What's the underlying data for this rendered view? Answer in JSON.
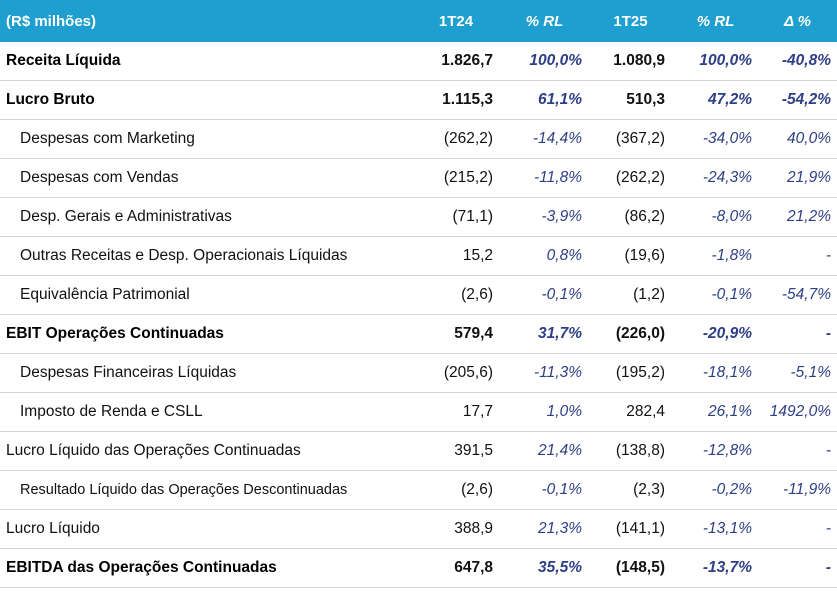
{
  "header": {
    "label": "(R$ milhões)",
    "col_1t24": "1T24",
    "col_rl_1": "% RL",
    "col_1t25": "1T25",
    "col_rl_2": "% RL",
    "col_delta": "Δ %"
  },
  "rows": [
    {
      "label": "Receita Líquida",
      "v1": "1.826,7",
      "p1": "100,0%",
      "v2": "1.080,9",
      "p2": "100,0%",
      "d": "-40,8%"
    },
    {
      "label": "Lucro Bruto",
      "v1": "1.115,3",
      "p1": "61,1%",
      "v2": "510,3",
      "p2": "47,2%",
      "d": "-54,2%"
    },
    {
      "label": "Despesas com Marketing",
      "v1": "(262,2)",
      "p1": "-14,4%",
      "v2": "(367,2)",
      "p2": "-34,0%",
      "d": "40,0%"
    },
    {
      "label": "Despesas com Vendas",
      "v1": "(215,2)",
      "p1": "-11,8%",
      "v2": "(262,2)",
      "p2": "-24,3%",
      "d": "21,9%"
    },
    {
      "label": "Desp. Gerais e Administrativas",
      "v1": "(71,1)",
      "p1": "-3,9%",
      "v2": "(86,2)",
      "p2": "-8,0%",
      "d": "21,2%"
    },
    {
      "label": "Outras Receitas e Desp. Operacionais Líquidas",
      "v1": "15,2",
      "p1": "0,8%",
      "v2": "(19,6)",
      "p2": "-1,8%",
      "d": "-"
    },
    {
      "label": "Equivalência Patrimonial",
      "v1": "(2,6)",
      "p1": "-0,1%",
      "v2": "(1,2)",
      "p2": "-0,1%",
      "d": "-54,7%"
    },
    {
      "label": "EBIT Operações Continuadas",
      "v1": "579,4",
      "p1": "31,7%",
      "v2": "(226,0)",
      "p2": "-20,9%",
      "d": "-"
    },
    {
      "label": "Despesas Financeiras Líquidas",
      "v1": "(205,6)",
      "p1": "-11,3%",
      "v2": "(195,2)",
      "p2": "-18,1%",
      "d": "-5,1%"
    },
    {
      "label": "Imposto de Renda e CSLL",
      "v1": "17,7",
      "p1": "1,0%",
      "v2": "282,4",
      "p2": "26,1%",
      "d": "1492,0%"
    },
    {
      "label": "Lucro Líquido das Operações Continuadas",
      "v1": "391,5",
      "p1": "21,4%",
      "v2": "(138,8)",
      "p2": "-12,8%",
      "d": "-"
    },
    {
      "label": "Resultado Líquido das Operações Descontinuadas",
      "v1": "(2,6)",
      "p1": "-0,1%",
      "v2": "(2,3)",
      "p2": "-0,2%",
      "d": "-11,9%"
    },
    {
      "label": "Lucro Líquido",
      "v1": "388,9",
      "p1": "21,3%",
      "v2": "(141,1)",
      "p2": "-13,1%",
      "d": "-"
    },
    {
      "label": "EBITDA das Operações Continuadas",
      "v1": "647,8",
      "p1": "35,5%",
      "v2": "(148,5)",
      "p2": "-13,7%",
      "d": "-"
    }
  ]
}
